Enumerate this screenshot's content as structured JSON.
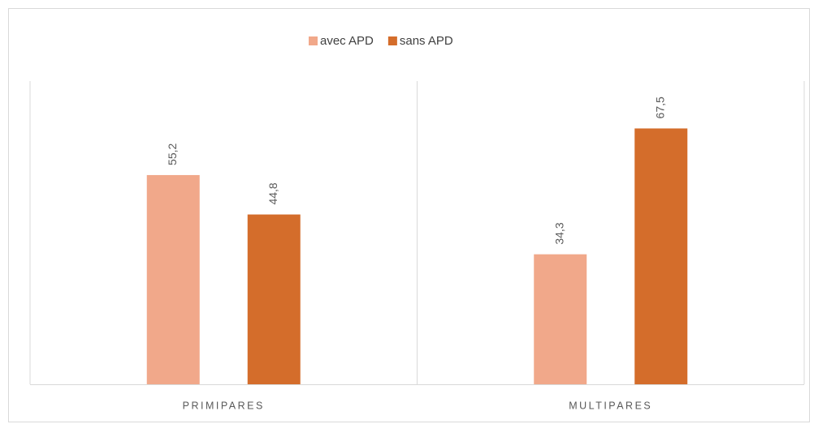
{
  "chart_data": {
    "type": "bar",
    "categories": [
      "PRIMIPARES",
      "MULTIPARES"
    ],
    "series": [
      {
        "name": "avec APD",
        "color": "#f1a88a",
        "values": [
          55.2,
          34.3
        ],
        "value_labels": [
          "55,2",
          "34,3"
        ]
      },
      {
        "name": "sans APD",
        "color": "#d46d2b",
        "values": [
          44.8,
          67.5
        ],
        "value_labels": [
          "44,8",
          "67,5"
        ]
      }
    ],
    "ylim": [
      0,
      80
    ],
    "legend": "top"
  }
}
